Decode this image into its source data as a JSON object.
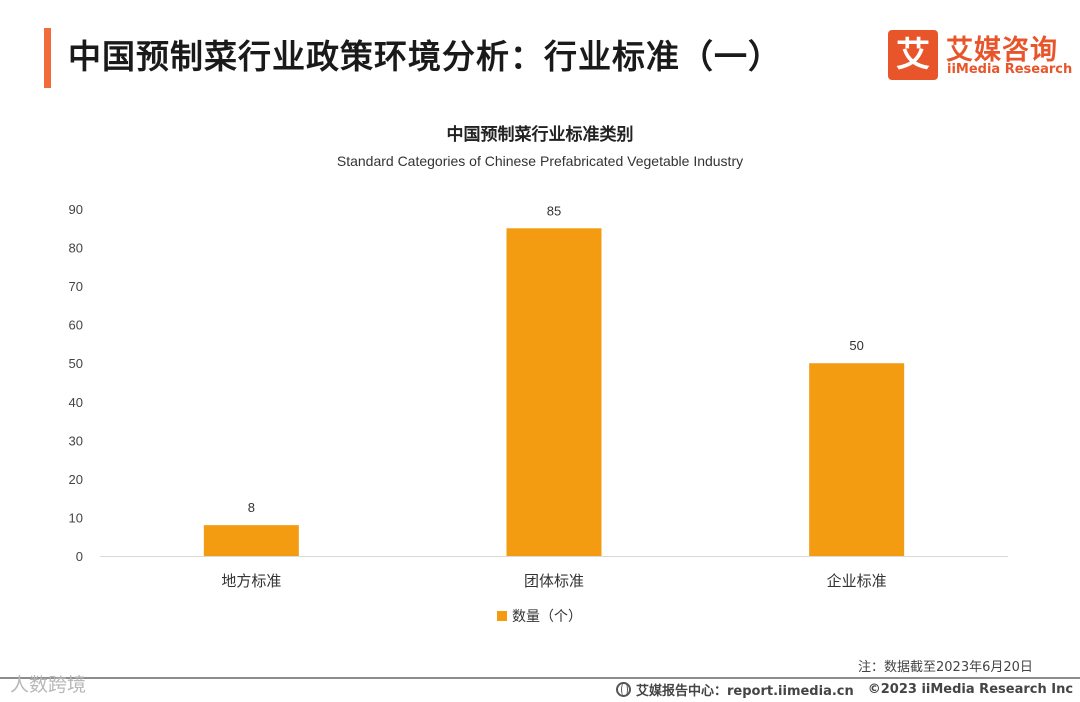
{
  "header": {
    "title": "中国预制菜行业政策环境分析：行业标准（一）",
    "logo_mark": "艾",
    "logo_cn": "艾媒咨询",
    "logo_en": "iiMedia Research"
  },
  "colors": {
    "accent": "#f26b3a",
    "brand": "#e8552a",
    "bar": "#f39c12"
  },
  "chart_data": {
    "type": "bar",
    "title": "中国预制菜行业标准类别",
    "subtitle": "Standard Categories of Chinese Prefabricated Vegetable Industry",
    "categories": [
      "地方标准",
      "团体标准",
      "企业标准"
    ],
    "series": [
      {
        "name": "数量（个）",
        "values": [
          8,
          85,
          50
        ],
        "color": "#f39c12"
      }
    ],
    "y_ticks": [
      0,
      10,
      20,
      30,
      40,
      50,
      60,
      70,
      80,
      90
    ],
    "ylim": [
      0,
      90
    ],
    "grid": false,
    "legend_position": "bottom"
  },
  "note": "注：数据截至2023年6月20日",
  "watermark": "人数跨境",
  "footer": {
    "source": "艾媒报告中心：report.iimedia.cn",
    "copyright": "©2023  iiMedia Research  Inc"
  }
}
